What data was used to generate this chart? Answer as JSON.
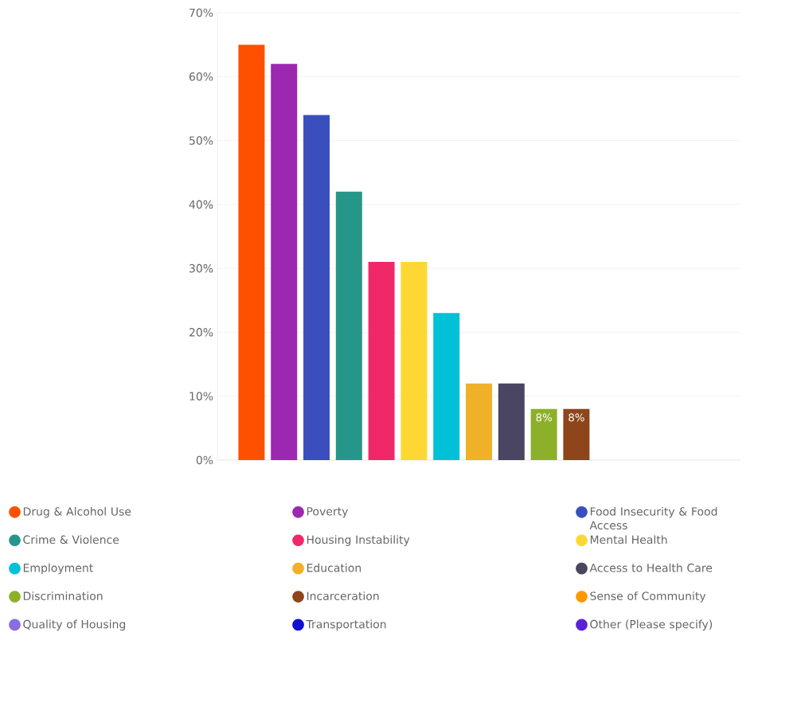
{
  "chart_data": {
    "type": "bar",
    "categories": [
      null
    ],
    "series": [
      {
        "name": "Drug & Alcohol Use",
        "color": "#ff5000",
        "values": [
          65
        ]
      },
      {
        "name": "Poverty",
        "color": "#9c27b0",
        "values": [
          62
        ]
      },
      {
        "name": "Food Insecurity & Food Access",
        "color": "#3a4fbd",
        "values": [
          54
        ]
      },
      {
        "name": "Crime & Violence",
        "color": "#26968a",
        "values": [
          42
        ]
      },
      {
        "name": "Housing Instability",
        "color": "#f0286a",
        "values": [
          31
        ]
      },
      {
        "name": "Mental Health",
        "color": "#fdd835",
        "values": [
          31
        ]
      },
      {
        "name": "Employment",
        "color": "#00c1d8",
        "values": [
          23
        ]
      },
      {
        "name": "Education",
        "color": "#f0b028",
        "values": [
          12
        ]
      },
      {
        "name": "Access to Health Care",
        "color": "#4a4560",
        "values": [
          12
        ]
      },
      {
        "name": "Discrimination",
        "color": "#8db02a",
        "values": [
          8
        ],
        "value_labels": [
          "8%"
        ]
      },
      {
        "name": "Incarceration",
        "color": "#8d4519",
        "values": [
          8
        ],
        "value_labels": [
          "8%"
        ]
      },
      {
        "name": "Sense of Community",
        "color": "#ff9800",
        "values": [
          0
        ]
      },
      {
        "name": "Quality of Housing",
        "color": "#8a6de0",
        "values": [
          0
        ]
      },
      {
        "name": "Transportation",
        "color": "#1010d0",
        "values": [
          0
        ]
      },
      {
        "name": "Other (Please specify)",
        "color": "#5b22d6",
        "values": [
          0
        ]
      }
    ],
    "ylim": [
      0,
      70
    ],
    "yticks": [
      {
        "value": 0,
        "label": "0%"
      },
      {
        "value": 10,
        "label": "10%"
      },
      {
        "value": 20,
        "label": "20%"
      },
      {
        "value": 30,
        "label": "30%"
      },
      {
        "value": 40,
        "label": "40%"
      },
      {
        "value": 50,
        "label": "50%"
      },
      {
        "value": 60,
        "label": "60%"
      },
      {
        "value": 70,
        "label": "70%"
      }
    ],
    "grid": "y",
    "legend": "bottom"
  }
}
